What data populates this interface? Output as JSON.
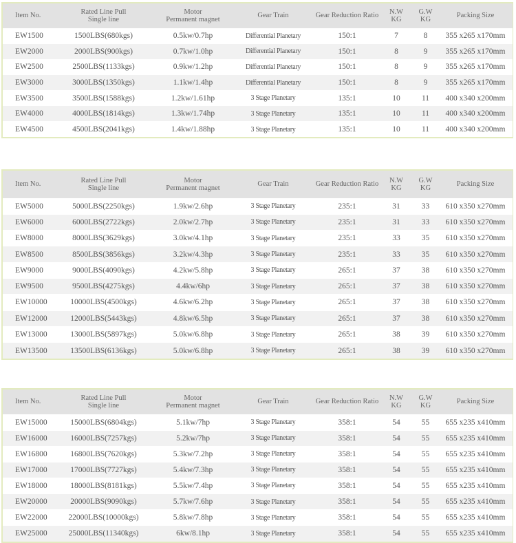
{
  "headers": {
    "item": "Item No.",
    "pull1": "Rated Line Pull",
    "pull2": "Single line",
    "motor1": "Motor",
    "motor2": "Permanent magnet",
    "gear": "Gear Train",
    "ratio": "Gear Reduction Ratio",
    "nw1": "N.W",
    "nw2": "KG",
    "gw1": "G.W",
    "gw2": "KG",
    "packing": "Packing  Size"
  },
  "colors": {
    "border": "#e3ebbf",
    "header_bg": "#e2e2e2",
    "row_alt": "#f1f1f1"
  },
  "tables": [
    {
      "rows": [
        [
          "EW1500",
          "1500LBS(680kgs)",
          "0.5kw/0.7hp",
          "Differential Planetary",
          "150:1",
          "7",
          "8",
          "355 x265 x170mm"
        ],
        [
          "EW2000",
          "2000LBS(900kgs)",
          "0.7kw/1.0hp",
          "Differential Planetary",
          "150:1",
          "8",
          "9",
          "355 x265 x170mm"
        ],
        [
          "EW2500",
          "2500LBS(1133kgs)",
          "0.9kw/1.2hp",
          "Differential Planetary",
          "150:1",
          "8",
          "9",
          "355 x265 x170mm"
        ],
        [
          "EW3000",
          "3000LBS(1350kgs)",
          "1.1kw/1.4hp",
          "Differential Planetary",
          "150:1",
          "8",
          "9",
          "355 x265 x170mm"
        ],
        [
          "EW3500",
          "3500LBS(1588kgs)",
          "1.2kw/1.61hp",
          "3 Stage Planetary",
          "135:1",
          "10",
          "11",
          "400 x340 x200mm"
        ],
        [
          "EW4000",
          "4000LBS(1814kgs)",
          "1.3kw/1.74hp",
          "3 Stage Planetary",
          "135:1",
          "10",
          "11",
          "400 x340 x200mm"
        ],
        [
          "EW4500",
          "4500LBS(2041kgs)",
          "1.4kw/1.88hp",
          "3 Stage Planetary",
          "135:1",
          "10",
          "11",
          "400 x340 x200mm"
        ]
      ]
    },
    {
      "rows": [
        [
          "EW5000",
          "5000LBS(2250kgs)",
          "1.9kw/2.6hp",
          "3 Stage Planetary",
          "235:1",
          "31",
          "33",
          "610 x350 x270mm"
        ],
        [
          "EW6000",
          "6000LBS(2722kgs)",
          "2.0kw/2.7hp",
          "3 Stage Planetary",
          "235:1",
          "31",
          "33",
          "610 x350 x270mm"
        ],
        [
          "EW8000",
          "8000LBS(3629kgs)",
          "3.0kw/4.1hp",
          "3 Stage Planetary",
          "235:1",
          "33",
          "35",
          "610 x350 x270mm"
        ],
        [
          "EW8500",
          "8500LBS(3856kgs)",
          "3.2kw/4.3hp",
          "3 Stage Planetary",
          "235:1",
          "33",
          "35",
          "610 x350 x270mm"
        ],
        [
          "EW9000",
          "9000LBS(4090kgs)",
          "4.2kw/5.8hp",
          "3 Stage Planetary",
          "265:1",
          "37",
          "38",
          "610 x350 x270mm"
        ],
        [
          "EW9500",
          "9500LBS(4275kgs)",
          "4.4kw/6hp",
          "3 Stage Planetary",
          "265:1",
          "37",
          "38",
          "610 x350 x270mm"
        ],
        [
          "EW10000",
          "10000LBS(4500kgs)",
          "4.6kw/6.2hp",
          "3 Stage Planetary",
          "265:1",
          "37",
          "38",
          "610 x350 x270mm"
        ],
        [
          "EW12000",
          "12000LBS(5443kgs)",
          "4.8kw/6.5hp",
          "3 Stage Planetary",
          "265:1",
          "37",
          "38",
          "610 x350 x270mm"
        ],
        [
          "EW13000",
          "13000LBS(5897kgs)",
          "5.0kw/6.8hp",
          "3 Stage Planetary",
          "265:1",
          "38",
          "39",
          "610 x350 x270mm"
        ],
        [
          "EW13500",
          "13500LBS(6136kgs)",
          "5.0kw/6.8hp",
          "3 Stage Planetary",
          "265:1",
          "38",
          "39",
          "610 x350 x270mm"
        ]
      ]
    },
    {
      "rows": [
        [
          "EW15000",
          "15000LBS(6804kgs)",
          "5.1kw/7hp",
          "3 Stage Planetary",
          "358:1",
          "54",
          "55",
          "655 x235 x410mm"
        ],
        [
          "EW16000",
          "16000LBS(7257kgs)",
          "5.2kw/7hp",
          "3 Stage Planetary",
          "358:1",
          "54",
          "55",
          "655 x235 x410mm"
        ],
        [
          "EW16800",
          "16800LBS(7620kgs)",
          "5.3kw/7.2hp",
          "3 Stage Planetary",
          "358:1",
          "54",
          "55",
          "655 x235 x410mm"
        ],
        [
          "EW17000",
          "17000LBS(7727kgs)",
          "5.4kw/7.3hp",
          "3 Stage Planetary",
          "358:1",
          "54",
          "55",
          "655 x235 x410mm"
        ],
        [
          "EW18000",
          "18000LBS(8181kgs)",
          "5.5kw/7.4hp",
          "3 Stage Planetary",
          "358:1",
          "54",
          "55",
          "655 x235 x410mm"
        ],
        [
          "EW20000",
          "20000LBS(9090kgs)",
          "5.7kw/7.6hp",
          "3 Stage Planetary",
          "358:1",
          "54",
          "55",
          "655 x235 x410mm"
        ],
        [
          "EW22000",
          "22000LBS(10000kgs)",
          "5.8kw/7.8hp",
          "3 Stage Planetary",
          "358:1",
          "54",
          "55",
          "655 x235 x410mm"
        ],
        [
          "EW25000",
          "25000LBS(11340kgs)",
          "6kw/8.1hp",
          "3 Stage Planetary",
          "358:1",
          "54",
          "55",
          "655 x235 x410mm"
        ]
      ]
    }
  ]
}
